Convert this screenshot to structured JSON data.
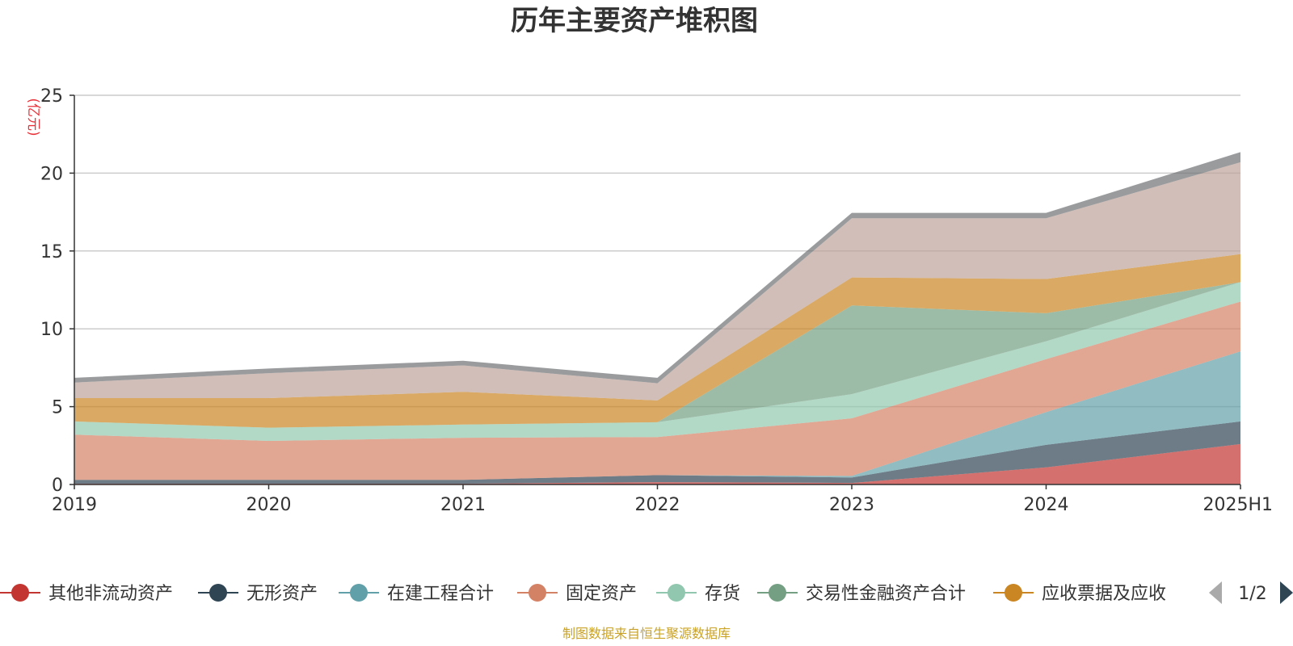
{
  "chart_data": {
    "type": "area",
    "stacked": true,
    "title": "历年主要资产堆积图",
    "unit": "(亿元)",
    "x": [
      "2019",
      "2020",
      "2021",
      "2022",
      "2023",
      "2024",
      "2025H1"
    ],
    "ylim": [
      0,
      25
    ],
    "yticks": [
      0,
      5,
      10,
      15,
      20,
      25
    ],
    "grid": true,
    "legend_position": "bottom",
    "legend_page": "1/2",
    "series": [
      {
        "name": "其他非流动资产",
        "color": "#c23531",
        "values": [
          0.05,
          0.05,
          0.05,
          0.15,
          0.1,
          1.1,
          2.6
        ]
      },
      {
        "name": "无形资产",
        "color": "#2f4554",
        "values": [
          0.25,
          0.25,
          0.25,
          0.45,
          0.35,
          1.45,
          1.45
        ]
      },
      {
        "name": "在建工程合计",
        "color": "#61a0a8",
        "values": [
          0.0,
          0.0,
          0.0,
          0.0,
          0.1,
          2.1,
          4.5
        ]
      },
      {
        "name": "固定资产",
        "color": "#d48265",
        "values": [
          2.9,
          2.5,
          2.7,
          2.45,
          3.7,
          3.4,
          3.2
        ]
      },
      {
        "name": "存货",
        "color": "#91c7ae",
        "values": [
          0.85,
          0.85,
          0.85,
          0.95,
          1.55,
          1.15,
          1.25
        ]
      },
      {
        "name": "交易性金融资产合计",
        "color": "#749f83",
        "values": [
          0.0,
          0.0,
          0.0,
          0.0,
          5.7,
          1.8,
          0.0
        ]
      },
      {
        "name": "应收票据及应收",
        "color": "#ca8622",
        "values": [
          1.5,
          1.9,
          2.1,
          1.4,
          1.8,
          2.2,
          1.8
        ]
      },
      {
        "name": "",
        "color": "#bda29a",
        "values": [
          1.0,
          1.6,
          1.7,
          1.1,
          3.8,
          3.9,
          5.9
        ]
      },
      {
        "name": "",
        "color": "#6e7074",
        "values": [
          0.3,
          0.3,
          0.3,
          0.35,
          0.35,
          0.35,
          0.65
        ]
      }
    ]
  },
  "source_note": "制图数据来自恒生聚源数据库"
}
